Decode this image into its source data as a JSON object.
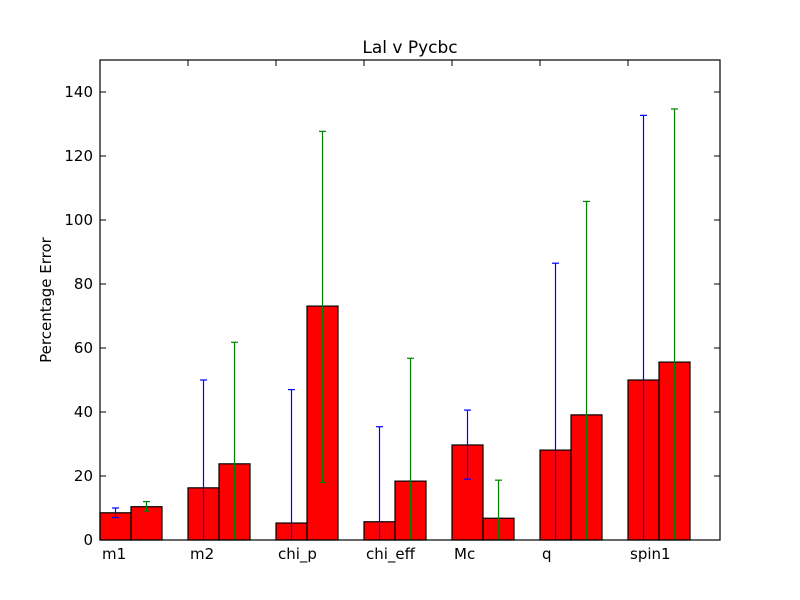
{
  "chart_data": {
    "type": "bar",
    "title": "Lal v Pycbc",
    "xlabel": "",
    "ylabel": "Percentage Error",
    "ylim": [
      0,
      150
    ],
    "yticks": [
      0,
      20,
      40,
      60,
      80,
      100,
      120,
      140
    ],
    "categories": [
      "m1",
      "m2",
      "chi_p",
      "chi_eff",
      "Mc",
      "q",
      "spin1"
    ],
    "grid": false,
    "legend": "none",
    "series": [
      {
        "values": [
          8.5,
          16.3,
          5.3,
          5.7,
          29.7,
          28.1,
          50.0
        ],
        "error_low": [
          7.0,
          0,
          0,
          0,
          19.0,
          0,
          0
        ],
        "error_high": [
          10.0,
          50.0,
          47.0,
          35.4,
          40.6,
          86.5,
          132.7
        ],
        "bar_color": "#ff0000",
        "error_color": "#0000ff"
      },
      {
        "values": [
          10.4,
          23.8,
          73.1,
          18.4,
          6.8,
          39.1,
          55.6
        ],
        "error_low": [
          9.0,
          0,
          18.0,
          0,
          0,
          0,
          0
        ],
        "error_high": [
          12.0,
          61.8,
          127.7,
          56.8,
          18.7,
          105.8,
          134.7
        ],
        "bar_color": "#ff0000",
        "error_color": "#008000"
      }
    ]
  }
}
